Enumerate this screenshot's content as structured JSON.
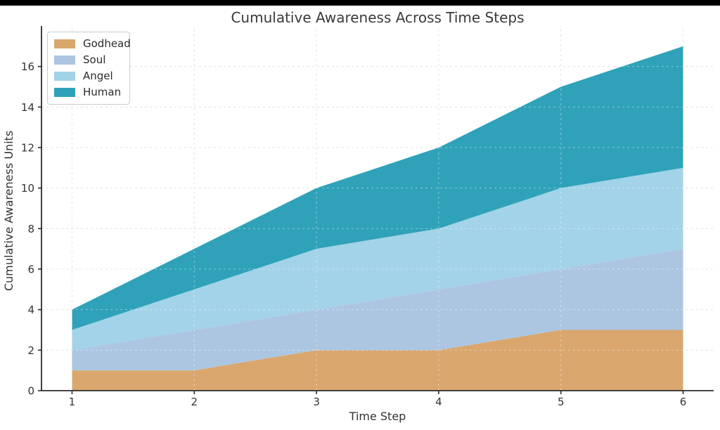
{
  "chart_data": {
    "type": "area",
    "stacked": true,
    "title": "Cumulative Awareness Across Time Steps",
    "xlabel": "Time Step",
    "ylabel": "Cumulative Awareness Units",
    "x": [
      1,
      2,
      3,
      4,
      5,
      6
    ],
    "xticks": [
      1,
      2,
      3,
      4,
      5,
      6
    ],
    "yticks": [
      0,
      2,
      4,
      6,
      8,
      10,
      12,
      14,
      16
    ],
    "xlim": [
      0.75,
      6.25
    ],
    "ylim": [
      0,
      18
    ],
    "grid": "dashed",
    "legend_position": "upper-left",
    "series": [
      {
        "name": "Godhead",
        "color": "#D9A76E",
        "values": [
          1,
          1,
          2,
          2,
          3,
          3
        ]
      },
      {
        "name": "Soul",
        "color": "#ACC6E2",
        "values": [
          1,
          2,
          2,
          3,
          3,
          4
        ]
      },
      {
        "name": "Angel",
        "color": "#A3D3E8",
        "values": [
          1,
          2,
          3,
          3,
          4,
          4
        ]
      },
      {
        "name": "Human",
        "color": "#2FA2B9",
        "values": [
          1,
          2,
          3,
          4,
          5,
          6
        ]
      }
    ],
    "cumulative_totals": [
      4,
      7,
      10,
      12,
      15,
      17
    ]
  },
  "colors": {
    "grid": "#D3D3D3",
    "grid_overlay": "rgba(255,255,255,0.42)",
    "spine": "#2B2B2B",
    "tick_text": "#333333",
    "title_text": "#3A3A3A",
    "background": "#FFFFFF",
    "top_bar": "#000000"
  }
}
